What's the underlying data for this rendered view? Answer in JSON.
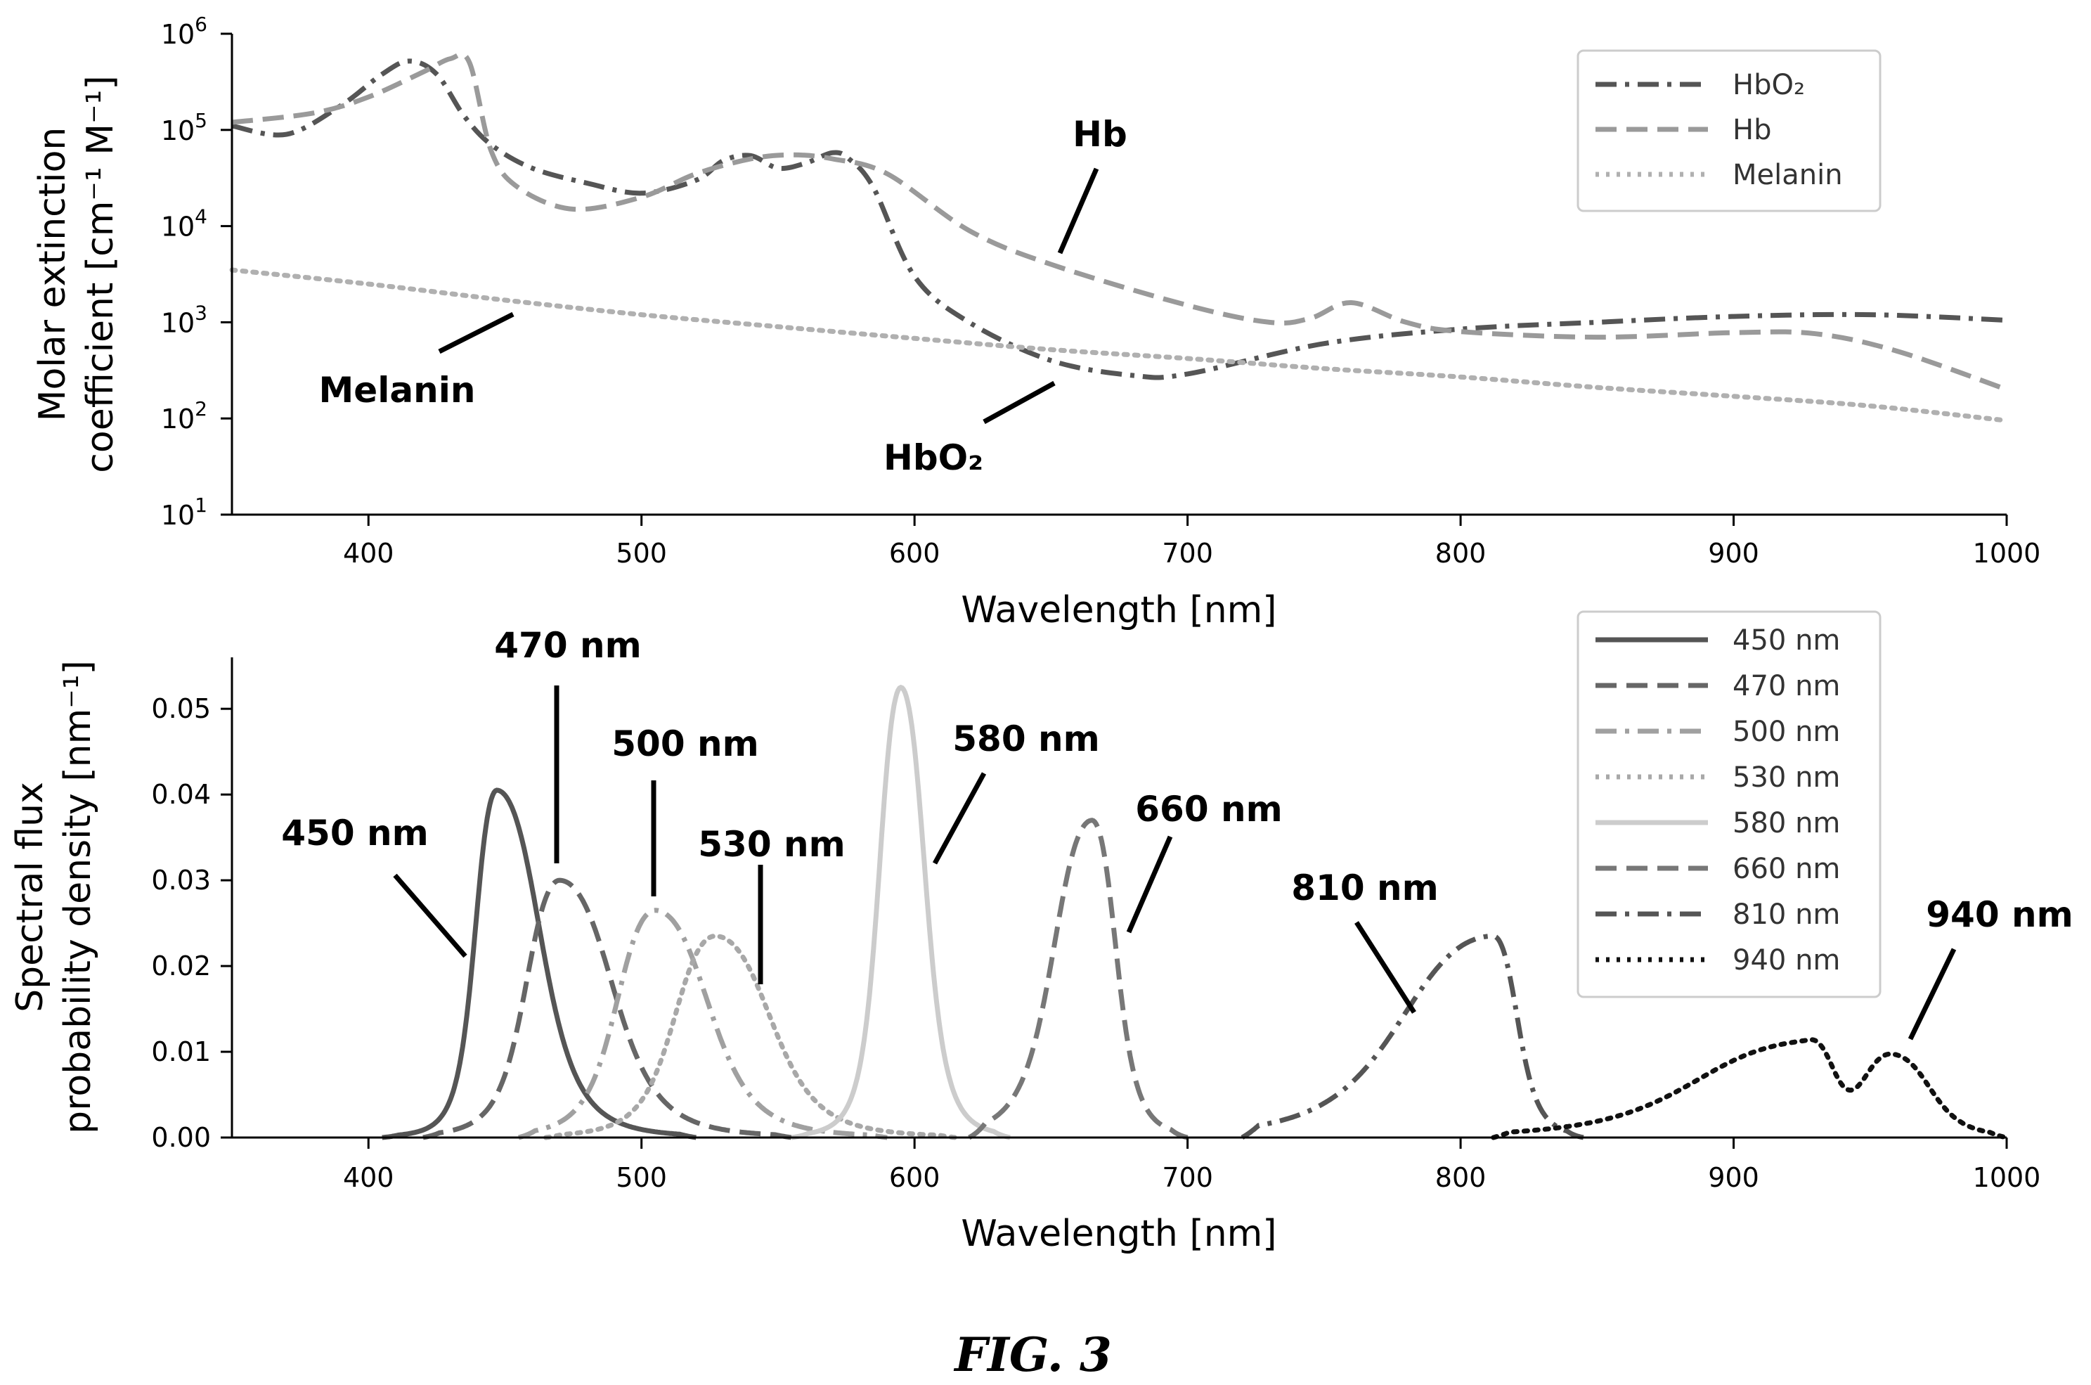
{
  "figure_caption": "FIG. 3",
  "chart_data": [
    {
      "type": "line",
      "xlabel": "Wavelength [nm]",
      "ylabel_line1": "Molar extinction",
      "ylabel_line2": "coefficient [cm⁻¹ M⁻¹]",
      "xlim": [
        350,
        1000
      ],
      "ylim": [
        10,
        1000000
      ],
      "yscale": "log",
      "x_ticks": [
        "400",
        "500",
        "600",
        "700",
        "800",
        "900",
        "1000"
      ],
      "y_ticks": [
        {
          "base": "10",
          "exp": "1",
          "value": 10
        },
        {
          "base": "10",
          "exp": "2",
          "value": 100
        },
        {
          "base": "10",
          "exp": "3",
          "value": 1000
        },
        {
          "base": "10",
          "exp": "4",
          "value": 10000
        },
        {
          "base": "10",
          "exp": "5",
          "value": 100000
        },
        {
          "base": "10",
          "exp": "6",
          "value": 1000000
        }
      ],
      "legend_position": "top-right",
      "series": [
        {
          "name": "HbO₂",
          "style": "dashdot",
          "color": "#555555",
          "x": [
            350,
            370,
            390,
            405,
            415,
            425,
            435,
            445,
            460,
            480,
            500,
            520,
            530,
            540,
            550,
            560,
            570,
            576,
            585,
            600,
            620,
            650,
            680,
            700,
            750,
            800,
            850,
            900,
            950,
            1000
          ],
          "y": [
            110000,
            90000,
            180000,
            380000,
            520000,
            380000,
            140000,
            70000,
            40000,
            28000,
            22000,
            30000,
            48000,
            54000,
            40000,
            45000,
            58000,
            50000,
            25000,
            3000,
            1000,
            400,
            280,
            290,
            600,
            850,
            1000,
            1150,
            1200,
            1050
          ]
        },
        {
          "name": "Hb",
          "style": "dashed",
          "color": "#9a9a9a",
          "x": [
            350,
            380,
            400,
            420,
            430,
            437,
            445,
            455,
            475,
            500,
            520,
            540,
            555,
            570,
            590,
            620,
            650,
            700,
            730,
            745,
            760,
            780,
            800,
            850,
            900,
            930,
            960,
            1000
          ],
          "y": [
            120000,
            150000,
            220000,
            400000,
            550000,
            500000,
            60000,
            25000,
            15000,
            20000,
            35000,
            50000,
            55000,
            50000,
            35000,
            9000,
            4000,
            1500,
            1000,
            1100,
            1600,
            1000,
            800,
            700,
            780,
            760,
            500,
            200
          ]
        },
        {
          "name": "Melanin",
          "style": "dotted",
          "color": "#b0b0b0",
          "x": [
            350,
            400,
            450,
            500,
            550,
            600,
            650,
            700,
            750,
            800,
            850,
            900,
            950,
            1000
          ],
          "y": [
            3500,
            2500,
            1700,
            1200,
            900,
            680,
            520,
            420,
            330,
            270,
            210,
            170,
            135,
            95
          ]
        }
      ],
      "annotations": [
        {
          "text": "Hb",
          "target": [
            655,
            3700
          ]
        },
        {
          "text": "Melanin",
          "target": [
            455,
            1600
          ]
        },
        {
          "text": "HbO₂",
          "target": [
            652,
            350
          ]
        }
      ]
    },
    {
      "type": "line",
      "xlabel": "Wavelength [nm]",
      "ylabel_line1": "Spectral flux",
      "ylabel_line2": "probability density [nm⁻¹]",
      "xlim": [
        350,
        1000
      ],
      "ylim": [
        0,
        0.056
      ],
      "x_ticks": [
        "400",
        "500",
        "600",
        "700",
        "800",
        "900",
        "1000"
      ],
      "y_ticks": [
        "0.00",
        "0.01",
        "0.02",
        "0.03",
        "0.04",
        "0.05"
      ],
      "legend_position": "top-right",
      "series": [
        {
          "name": "450 nm",
          "style": "solid",
          "color": "#555555",
          "peaks": [
            [
              447,
              0.0405,
              9,
              18
            ]
          ],
          "range": [
            405,
            520
          ]
        },
        {
          "name": "470 nm",
          "style": "dashed",
          "color": "#666666",
          "peaks": [
            [
              470,
              0.03,
              14,
              22
            ]
          ],
          "range": [
            420,
            555
          ]
        },
        {
          "name": "500 nm",
          "style": "dashdot",
          "color": "#a0a0a0",
          "peaks": [
            [
              505,
              0.0265,
              16,
              22
            ]
          ],
          "range": [
            455,
            590
          ]
        },
        {
          "name": "530 nm",
          "style": "dotted",
          "color": "#a8a8a8",
          "peaks": [
            [
              527,
              0.0235,
              17,
              23
            ]
          ],
          "range": [
            465,
            615
          ]
        },
        {
          "name": "580 nm",
          "style": "solid",
          "color": "#cccccc",
          "peaks": [
            [
              595,
              0.0525,
              9,
              10
            ]
          ],
          "range": [
            555,
            635
          ]
        },
        {
          "name": "660 nm",
          "style": "dashed",
          "color": "#777777",
          "peaks": [
            [
              665,
              0.037,
              16,
              10
            ]
          ],
          "range": [
            620,
            700
          ]
        },
        {
          "name": "810 nm",
          "style": "dashdot",
          "color": "#555555",
          "peaks": [
            [
              812,
              0.0235,
              38,
              10
            ]
          ],
          "range": [
            720,
            845
          ]
        },
        {
          "name": "940 nm",
          "style": "dotted",
          "color": "#111111",
          "peaks": [
            [
              928,
              0.011,
              48,
              10
            ],
            [
              958,
              0.0095,
              12,
              16
            ]
          ],
          "range": [
            812,
            1000
          ]
        }
      ],
      "annotations": [
        {
          "text": "450 nm",
          "target": [
            436,
            0.021
          ]
        },
        {
          "text": "470 nm",
          "target": [
            470,
            0.031
          ]
        },
        {
          "text": "500 nm",
          "target": [
            505,
            0.028
          ]
        },
        {
          "text": "530 nm",
          "target": [
            544,
            0.018
          ]
        },
        {
          "text": "580 nm",
          "target": [
            607,
            0.031
          ]
        },
        {
          "text": "660 nm",
          "target": [
            679,
            0.024
          ]
        },
        {
          "text": "810 nm",
          "target": [
            790,
            0.015
          ]
        },
        {
          "text": "940 nm",
          "target": [
            964,
            0.012
          ]
        }
      ]
    }
  ]
}
